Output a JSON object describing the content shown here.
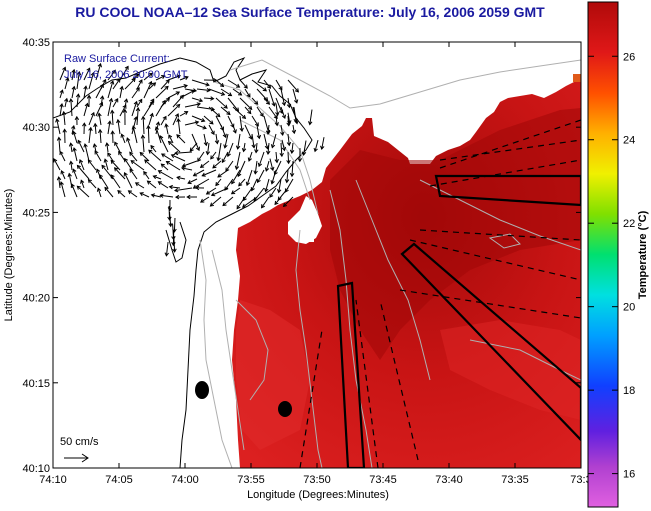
{
  "title": "RU COOL  NOAA–12  Sea Surface Temperature:  July 16, 2006 2059 GMT",
  "legend": {
    "line1": "Raw Surface Current:",
    "line2": "July 16, 2006 20:00 GMT",
    "scale_label": "50 cm/s"
  },
  "axes": {
    "xlabel": "Longitude (Degrees:Minutes)",
    "ylabel": "Latitude (Degrees:Minutes)",
    "xticks": [
      "74:10",
      "74:05",
      "74:00",
      "73:55",
      "73:50",
      "73:45",
      "73:40",
      "73:35",
      "73:3"
    ],
    "yticks": [
      "40:35",
      "40:30",
      "40:25",
      "40:20",
      "40:15",
      "40:10"
    ]
  },
  "colorbar": {
    "title": "Temperature (°C)",
    "ticks": [
      "26",
      "24",
      "22",
      "20",
      "18",
      "16"
    ],
    "range": [
      15.2,
      27.3
    ]
  },
  "colors": {
    "title": "#1a1aa0",
    "sst_warm": "#c81010",
    "sst_hot": "#a80a0a",
    "land": "#ffffff",
    "contour": "#b0b0b0"
  },
  "icons": {
    "station-marker": "black-ellipse",
    "current-vector": "arrow"
  }
}
